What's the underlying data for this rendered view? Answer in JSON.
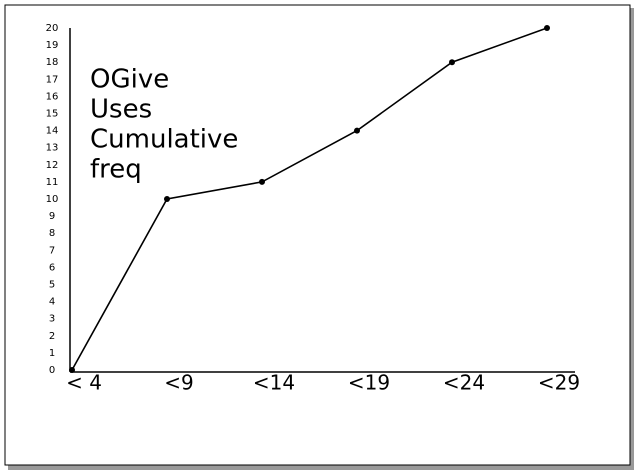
{
  "chart_data": {
    "type": "line",
    "annotations": [
      "OGive",
      "Uses",
      "Cumulative",
      "freq"
    ],
    "categories": [
      "< 4",
      "<9",
      "<14",
      "<19",
      "<24",
      "<29"
    ],
    "values": [
      0,
      10,
      11,
      14,
      18,
      20
    ],
    "color": "#000000",
    "ylim": [
      0,
      20
    ],
    "yticks": [
      0,
      1,
      2,
      3,
      4,
      5,
      6,
      7,
      8,
      9,
      10,
      11,
      12,
      13,
      14,
      15,
      16,
      17,
      18,
      19,
      20
    ],
    "grid": false
  }
}
